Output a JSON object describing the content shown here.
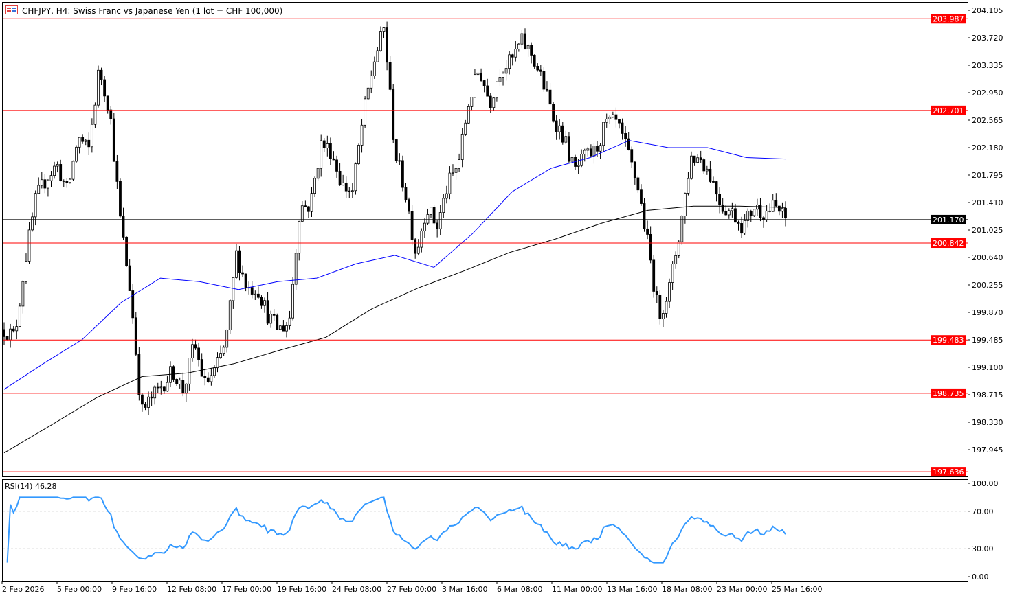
{
  "header": {
    "title": "CHFJPY, H4:  Swiss Franc vs Japanese Yen (1 lot = CHF 100,000)",
    "icon": "chart-window-icon"
  },
  "indicator": {
    "label": "RSI(14) 46.28",
    "ticks": [
      "100.00",
      "70.00",
      "30.00",
      "0.00"
    ],
    "levels": [
      70,
      30
    ],
    "line_color": "#3399ff"
  },
  "chart_data": {
    "type": "candlestick",
    "symbol": "CHFJPY",
    "timeframe": "H4",
    "ylim": [
      197.6,
      204.2
    ],
    "price_ticks": [
      "204.105",
      "203.720",
      "203.335",
      "202.950",
      "202.565",
      "202.180",
      "201.795",
      "201.410",
      "201.025",
      "200.640",
      "200.255",
      "199.870",
      "199.485",
      "199.100",
      "198.715",
      "198.330",
      "197.945"
    ],
    "x_tick_labels": [
      "2 Feb 2026",
      "5 Feb 00:00",
      "9 Feb 16:00",
      "12 Feb 08:00",
      "17 Feb 00:00",
      "19 Feb 16:00",
      "24 Feb 08:00",
      "27 Feb 00:00",
      "3 Mar 16:00",
      "6 Mar 08:00",
      "11 Mar 00:00",
      "13 Mar 16:00",
      "18 Mar 08:00",
      "23 Mar 00:00",
      "25 Mar 16:00"
    ],
    "close_path": [
      199.63,
      199.53,
      200.59,
      201.46,
      201.75,
      201.94,
      201.56,
      202.33,
      202.13,
      203.29,
      202.71,
      201.17,
      200.11,
      198.47,
      198.67,
      198.86,
      199.05,
      198.76,
      199.44,
      198.86,
      199.05,
      199.44,
      200.69,
      200.21,
      200.21,
      199.82,
      199.63,
      199.73,
      201.36,
      201.36,
      202.23,
      202.13,
      201.65,
      201.56,
      202.61,
      203.38,
      203.86,
      202.13,
      201.56,
      200.69,
      201.36,
      201.07,
      201.65,
      201.94,
      202.81,
      203.29,
      202.81,
      203.29,
      203.38,
      203.67,
      203.48,
      203.1,
      202.61,
      202.33,
      201.84,
      202.04,
      202.13,
      202.52,
      202.52,
      202.13,
      201.65,
      200.79,
      199.82,
      200.21,
      201.02,
      202.04,
      202.04,
      201.75,
      201.36,
      201.27,
      201.07,
      201.36,
      201.27,
      201.36,
      201.17
    ],
    "ma_blue": [
      198.79,
      199.15,
      199.49,
      200.01,
      200.35,
      200.3,
      200.19,
      200.3,
      200.35,
      200.55,
      200.67,
      200.5,
      200.98,
      201.56,
      201.89,
      202.04,
      202.28,
      202.18,
      202.18,
      202.04,
      202.02
    ],
    "ma_black": [
      197.9,
      198.28,
      198.67,
      198.97,
      199.02,
      199.15,
      199.34,
      199.52,
      199.92,
      200.21,
      200.45,
      200.71,
      200.9,
      201.12,
      201.3,
      201.36,
      201.36,
      201.34
    ],
    "ma_colors": {
      "blue": "#0000ff",
      "black": "#000000"
    },
    "horizontal_levels": [
      {
        "price": "203.987",
        "color": "#ff0000"
      },
      {
        "price": "202.701",
        "color": "#ff0000"
      },
      {
        "price": "200.842",
        "color": "#ff0000"
      },
      {
        "price": "199.483",
        "color": "#ff0000"
      },
      {
        "price": "198.735",
        "color": "#ff0000"
      },
      {
        "price": "197.636",
        "color": "#ff0000"
      }
    ],
    "current_price": {
      "price": "201.170",
      "color": "#000000"
    },
    "grid": false
  }
}
